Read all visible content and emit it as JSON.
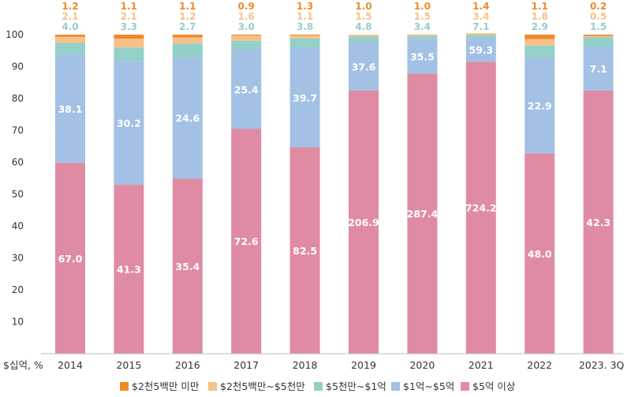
{
  "chart_data": {
    "type": "bar",
    "stacked": true,
    "normalized": true,
    "unit_label": "$십억, %",
    "ylim": [
      0,
      100
    ],
    "yticks": [
      10,
      20,
      30,
      40,
      50,
      60,
      70,
      80,
      90,
      100
    ],
    "categories": [
      "2014",
      "2015",
      "2016",
      "2017",
      "2018",
      "2019",
      "2020",
      "2021",
      "2022",
      "2023. 3Q"
    ],
    "series": [
      {
        "name": "$5억 이상",
        "color": "#e08ba4",
        "share_pct": [
          59.8,
          53.0,
          54.9,
          70.5,
          64.7,
          82.5,
          87.8,
          91.5,
          62.8,
          82.5
        ],
        "labels": [
          "67.0",
          "41.3",
          "35.4",
          "72.6",
          "82.5",
          "206.9",
          "287.4",
          "724.2",
          "48.0",
          "42.3"
        ]
      },
      {
        "name": "$1억~$5억",
        "color": "#a2c1e4",
        "share_pct": [
          34.0,
          38.8,
          38.1,
          24.7,
          31.1,
          15.0,
          10.8,
          7.5,
          30.0,
          13.8
        ],
        "labels": [
          "38.1",
          "30.2",
          "24.6",
          "25.4",
          "39.7",
          "37.6",
          "35.5",
          "59.3",
          "22.9",
          "7.1"
        ]
      },
      {
        "name": "$5천만~$1억",
        "color": "#93d0c8",
        "share_pct": [
          3.6,
          4.2,
          4.2,
          2.9,
          3.0,
          1.9,
          1.0,
          0.9,
          3.8,
          2.9
        ],
        "labels": [
          "4.0",
          "3.3",
          "2.7",
          "3.0",
          "3.8",
          "4.8",
          "3.4",
          "7.1",
          "2.9",
          "1.5"
        ]
      },
      {
        "name": "$2천5백만~$5천만",
        "color": "#f7c18a",
        "share_pct": [
          1.9,
          2.7,
          1.9,
          1.6,
          0.9,
          0.6,
          0.5,
          0.4,
          2.0,
          0.4
        ],
        "labels": [
          "2.1",
          "2.1",
          "1.2",
          "1.6",
          "1.1",
          "1.5",
          "1.5",
          "3.4",
          "1.8",
          "0.5"
        ]
      },
      {
        "name": "$2천5백만 미만",
        "color": "#f0892a",
        "share_pct": [
          0.7,
          1.3,
          0.9,
          0.3,
          0.3,
          0.0,
          0.0,
          0.1,
          1.4,
          0.4
        ],
        "labels": [
          "1.2",
          "1.1",
          "1.1",
          "0.9",
          "1.3",
          "1.0",
          "1.0",
          "1.4",
          "1.1",
          "0.2"
        ]
      }
    ],
    "legend_position": "bottom",
    "legend_order": [
      "$2천5백만 미만",
      "$2천5백만~$5천만",
      "$5천만~$1억",
      "$1억~$5억",
      "$5억 이상"
    ]
  }
}
